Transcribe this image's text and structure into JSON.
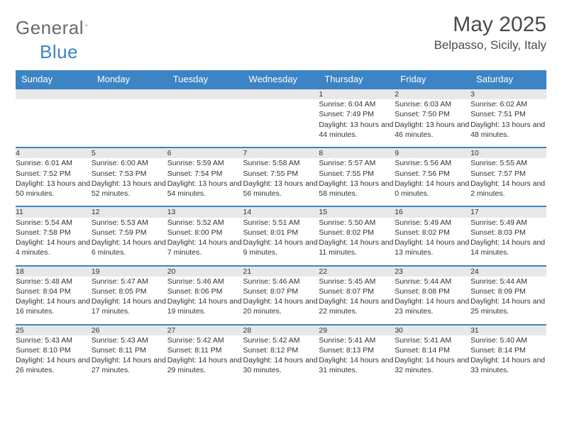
{
  "brand": {
    "part1": "General",
    "part2": "Blue"
  },
  "title": "May 2025",
  "location": "Belpasso, Sicily, Italy",
  "colors": {
    "header_bg": "#3d84c4",
    "header_text": "#ffffff",
    "daynum_bg": "#e8e8e8",
    "row_border": "#3d84c4",
    "body_text": "#333333",
    "brand_gray": "#6a6a6a",
    "brand_blue": "#3d84c4"
  },
  "weekdays": [
    "Sunday",
    "Monday",
    "Tuesday",
    "Wednesday",
    "Thursday",
    "Friday",
    "Saturday"
  ],
  "weeks": [
    [
      null,
      null,
      null,
      null,
      {
        "n": "1",
        "sr": "6:04 AM",
        "ss": "7:49 PM",
        "dl": "13 hours and 44 minutes."
      },
      {
        "n": "2",
        "sr": "6:03 AM",
        "ss": "7:50 PM",
        "dl": "13 hours and 46 minutes."
      },
      {
        "n": "3",
        "sr": "6:02 AM",
        "ss": "7:51 PM",
        "dl": "13 hours and 48 minutes."
      }
    ],
    [
      {
        "n": "4",
        "sr": "6:01 AM",
        "ss": "7:52 PM",
        "dl": "13 hours and 50 minutes."
      },
      {
        "n": "5",
        "sr": "6:00 AM",
        "ss": "7:53 PM",
        "dl": "13 hours and 52 minutes."
      },
      {
        "n": "6",
        "sr": "5:59 AM",
        "ss": "7:54 PM",
        "dl": "13 hours and 54 minutes."
      },
      {
        "n": "7",
        "sr": "5:58 AM",
        "ss": "7:55 PM",
        "dl": "13 hours and 56 minutes."
      },
      {
        "n": "8",
        "sr": "5:57 AM",
        "ss": "7:55 PM",
        "dl": "13 hours and 58 minutes."
      },
      {
        "n": "9",
        "sr": "5:56 AM",
        "ss": "7:56 PM",
        "dl": "14 hours and 0 minutes."
      },
      {
        "n": "10",
        "sr": "5:55 AM",
        "ss": "7:57 PM",
        "dl": "14 hours and 2 minutes."
      }
    ],
    [
      {
        "n": "11",
        "sr": "5:54 AM",
        "ss": "7:58 PM",
        "dl": "14 hours and 4 minutes."
      },
      {
        "n": "12",
        "sr": "5:53 AM",
        "ss": "7:59 PM",
        "dl": "14 hours and 6 minutes."
      },
      {
        "n": "13",
        "sr": "5:52 AM",
        "ss": "8:00 PM",
        "dl": "14 hours and 7 minutes."
      },
      {
        "n": "14",
        "sr": "5:51 AM",
        "ss": "8:01 PM",
        "dl": "14 hours and 9 minutes."
      },
      {
        "n": "15",
        "sr": "5:50 AM",
        "ss": "8:02 PM",
        "dl": "14 hours and 11 minutes."
      },
      {
        "n": "16",
        "sr": "5:49 AM",
        "ss": "8:02 PM",
        "dl": "14 hours and 13 minutes."
      },
      {
        "n": "17",
        "sr": "5:49 AM",
        "ss": "8:03 PM",
        "dl": "14 hours and 14 minutes."
      }
    ],
    [
      {
        "n": "18",
        "sr": "5:48 AM",
        "ss": "8:04 PM",
        "dl": "14 hours and 16 minutes."
      },
      {
        "n": "19",
        "sr": "5:47 AM",
        "ss": "8:05 PM",
        "dl": "14 hours and 17 minutes."
      },
      {
        "n": "20",
        "sr": "5:46 AM",
        "ss": "8:06 PM",
        "dl": "14 hours and 19 minutes."
      },
      {
        "n": "21",
        "sr": "5:46 AM",
        "ss": "8:07 PM",
        "dl": "14 hours and 20 minutes."
      },
      {
        "n": "22",
        "sr": "5:45 AM",
        "ss": "8:07 PM",
        "dl": "14 hours and 22 minutes."
      },
      {
        "n": "23",
        "sr": "5:44 AM",
        "ss": "8:08 PM",
        "dl": "14 hours and 23 minutes."
      },
      {
        "n": "24",
        "sr": "5:44 AM",
        "ss": "8:09 PM",
        "dl": "14 hours and 25 minutes."
      }
    ],
    [
      {
        "n": "25",
        "sr": "5:43 AM",
        "ss": "8:10 PM",
        "dl": "14 hours and 26 minutes."
      },
      {
        "n": "26",
        "sr": "5:43 AM",
        "ss": "8:11 PM",
        "dl": "14 hours and 27 minutes."
      },
      {
        "n": "27",
        "sr": "5:42 AM",
        "ss": "8:11 PM",
        "dl": "14 hours and 29 minutes."
      },
      {
        "n": "28",
        "sr": "5:42 AM",
        "ss": "8:12 PM",
        "dl": "14 hours and 30 minutes."
      },
      {
        "n": "29",
        "sr": "5:41 AM",
        "ss": "8:13 PM",
        "dl": "14 hours and 31 minutes."
      },
      {
        "n": "30",
        "sr": "5:41 AM",
        "ss": "8:14 PM",
        "dl": "14 hours and 32 minutes."
      },
      {
        "n": "31",
        "sr": "5:40 AM",
        "ss": "8:14 PM",
        "dl": "14 hours and 33 minutes."
      }
    ]
  ],
  "labels": {
    "sunrise": "Sunrise: ",
    "sunset": "Sunset: ",
    "daylight": "Daylight: "
  }
}
